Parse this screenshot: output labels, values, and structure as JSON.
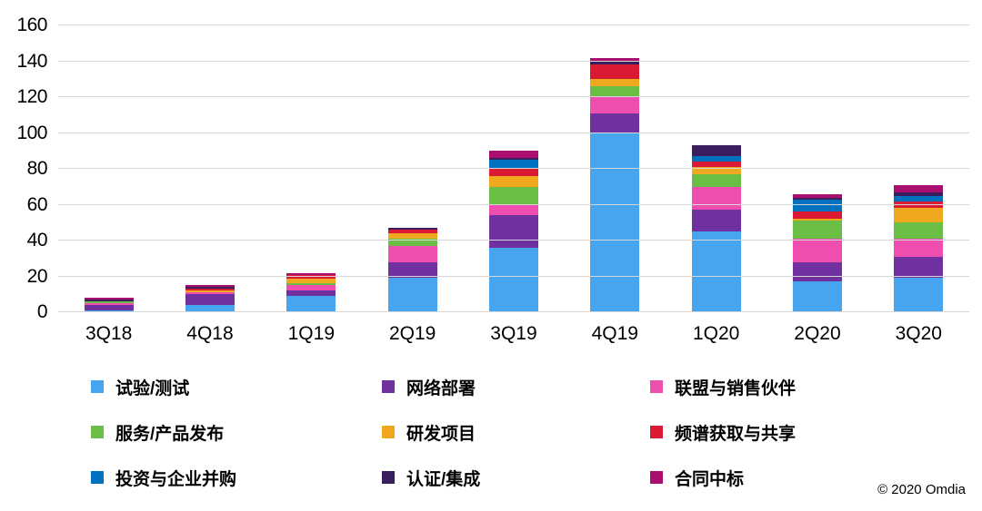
{
  "chart_data": {
    "type": "bar",
    "stacked": true,
    "title": "",
    "xlabel": "",
    "ylabel": "",
    "ylim": [
      0,
      160
    ],
    "ytick_interval": 20,
    "grid": true,
    "legend_position": "bottom",
    "categories": [
      "3Q18",
      "4Q18",
      "1Q19",
      "2Q19",
      "3Q19",
      "4Q19",
      "1Q20",
      "2Q20",
      "3Q20"
    ],
    "series": [
      {
        "name": "试验/测试",
        "color": "#47A5EF",
        "values": [
          1,
          4,
          9,
          19,
          36,
          100,
          45,
          17,
          19
        ]
      },
      {
        "name": "网络部署",
        "color": "#7030A0",
        "values": [
          3,
          6,
          3,
          9,
          18,
          11,
          12,
          11,
          12
        ]
      },
      {
        "name": "联盟与销售伙伴",
        "color": "#EE4FAF",
        "values": [
          1,
          1,
          3,
          9,
          6,
          9,
          13,
          13,
          10
        ]
      },
      {
        "name": "服务/产品发布",
        "color": "#6ABD45",
        "values": [
          1,
          0,
          1,
          4,
          10,
          6,
          7,
          10,
          9
        ]
      },
      {
        "name": "研发项目",
        "color": "#F0A81E",
        "values": [
          0,
          1,
          3,
          3,
          6,
          4,
          4,
          1,
          8
        ]
      },
      {
        "name": "频谱获取与共享",
        "color": "#D91A32",
        "values": [
          0,
          1,
          2,
          2,
          4,
          8,
          3,
          4,
          4
        ]
      },
      {
        "name": "投资与企业并购",
        "color": "#0070C0",
        "values": [
          0,
          0,
          0,
          0,
          5,
          0,
          3,
          7,
          3
        ]
      },
      {
        "name": "认证/集成",
        "color": "#3B1E5E",
        "values": [
          1,
          1,
          0,
          1,
          1,
          2,
          6,
          1,
          2
        ]
      },
      {
        "name": "合同中标",
        "color": "#AA0E6E",
        "values": [
          1,
          1,
          1,
          0,
          4,
          2,
          0,
          2,
          4
        ]
      }
    ]
  },
  "colors": {
    "background": "#FFFFFF",
    "gridline": "#D6D6D6",
    "text": "#000000"
  },
  "copyright": "© 2020 Omdia"
}
